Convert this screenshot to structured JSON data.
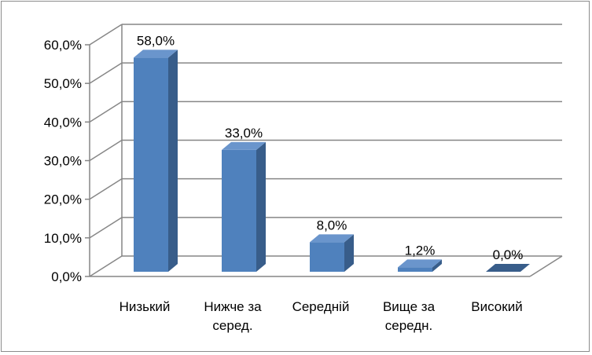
{
  "chart_data": {
    "type": "bar",
    "style": "3d-column",
    "categories": [
      [
        "Низький"
      ],
      [
        "Нижче за",
        "серед."
      ],
      [
        "Середній"
      ],
      [
        "Вище за",
        "середн."
      ],
      [
        "Високий"
      ]
    ],
    "values": [
      58.0,
      33.0,
      8.0,
      1.2,
      0.0
    ],
    "data_labels": [
      "58,0%",
      "33,0%",
      "8,0%",
      "1,2%",
      "0,0%"
    ],
    "y_ticks": [
      "0,0%",
      "10,0%",
      "20,0%",
      "30,0%",
      "40,0%",
      "50,0%",
      "60,0%"
    ],
    "ylim": [
      0,
      60
    ],
    "grid": true,
    "legend": "none",
    "colors": {
      "bar_front": "#4F81BD",
      "bar_side": "#385D8A",
      "bar_top": "#6A95CC",
      "grid": "#868686",
      "axis": "#868686"
    }
  }
}
